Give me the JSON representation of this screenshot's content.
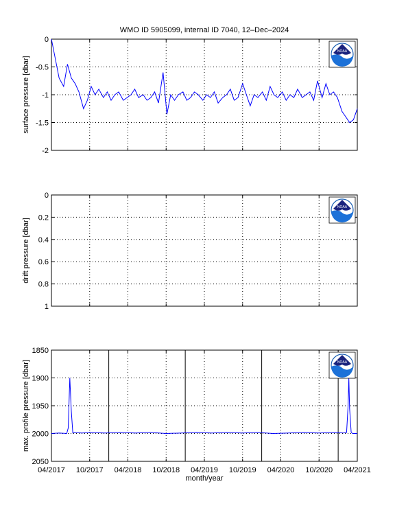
{
  "figure": {
    "title": "WMO ID 5905099, internal ID 7040, 12–Dec–2024",
    "xlabel": "month/year",
    "logo_text": "NOAA",
    "colors": {
      "series": "#0000ff",
      "axes": "#000000",
      "grid": "#000000"
    }
  },
  "chart_data": [
    {
      "type": "line",
      "ylabel": "surface pressure [dbar]",
      "ylim": [
        -2,
        0
      ],
      "yreversed": false,
      "yticks": [
        0,
        -0.5,
        -1,
        -1.5,
        -2
      ],
      "ytick_labels": [
        "0",
        "-0.5",
        "-1",
        "-1.5",
        "-2"
      ],
      "grid": true,
      "logo": "top-right",
      "series": [
        {
          "x": [
            0,
            0.05,
            0.1,
            0.16,
            0.21,
            0.26,
            0.31,
            0.36,
            0.42,
            0.47,
            0.52,
            0.57,
            0.62,
            0.68,
            0.73,
            0.78,
            0.83,
            0.88,
            0.94,
            0.99,
            1.04,
            1.09,
            1.14,
            1.2,
            1.25,
            1.3,
            1.35,
            1.4,
            1.46,
            1.51,
            1.56,
            1.61,
            1.66,
            1.72,
            1.77,
            1.82,
            1.87,
            1.92,
            1.98,
            2.03,
            2.08,
            2.13,
            2.18,
            2.24,
            2.29,
            2.34,
            2.39,
            2.44,
            2.5,
            2.55,
            2.6,
            2.65,
            2.7,
            2.76,
            2.81,
            2.86,
            2.91,
            2.96,
            3.02,
            3.07,
            3.12,
            3.17,
            3.22,
            3.28,
            3.33,
            3.38,
            3.43,
            3.48,
            3.54,
            3.59,
            3.64,
            3.69,
            3.74,
            3.8,
            3.85,
            3.9,
            3.95,
            4.0
          ],
          "y": [
            0,
            -0.35,
            -0.7,
            -0.85,
            -0.45,
            -0.7,
            -0.8,
            -0.95,
            -1.25,
            -1.1,
            -0.85,
            -1.0,
            -0.9,
            -1.05,
            -0.95,
            -1.1,
            -1.0,
            -0.95,
            -1.1,
            -1.05,
            -1.0,
            -0.9,
            -1.05,
            -1.0,
            -1.1,
            -1.05,
            -0.95,
            -1.15,
            -0.6,
            -1.35,
            -1.0,
            -1.1,
            -1.0,
            -0.95,
            -1.1,
            -1.05,
            -0.95,
            -1.0,
            -1.1,
            -1.0,
            -1.05,
            -0.95,
            -1.15,
            -1.05,
            -1.0,
            -0.9,
            -1.1,
            -1.05,
            -0.8,
            -1.0,
            -1.2,
            -1.0,
            -1.05,
            -0.95,
            -1.1,
            -0.85,
            -1.0,
            -1.05,
            -0.95,
            -1.1,
            -1.0,
            -1.05,
            -0.9,
            -1.05,
            -1.0,
            -0.95,
            -1.1,
            -0.75,
            -1.05,
            -0.8,
            -1.0,
            -0.95,
            -1.05,
            -1.3,
            -1.4,
            -1.5,
            -1.45,
            -1.25
          ]
        }
      ]
    },
    {
      "type": "line",
      "ylabel": "drift pressure [dbar]",
      "ylim": [
        0,
        1
      ],
      "yreversed": true,
      "yticks": [
        0,
        0.2,
        0.4,
        0.6,
        0.8,
        1
      ],
      "ytick_labels": [
        "0",
        "0.2",
        "0.4",
        "0.6",
        "0.8",
        "1"
      ],
      "grid": true,
      "logo": "top-right",
      "series": []
    },
    {
      "type": "line",
      "ylabel": "max. profile pressure [dbar]",
      "ylim": [
        1850,
        2050
      ],
      "yreversed": true,
      "yticks": [
        1850,
        1900,
        1950,
        2000,
        2050
      ],
      "ytick_labels": [
        "1850",
        "1900",
        "1950",
        "2000",
        "2050"
      ],
      "grid": true,
      "logo": "top-right",
      "vlines_x": [
        0.75,
        1.75,
        2.75,
        3.75
      ],
      "series": [
        {
          "x": [
            0,
            0.1,
            0.2,
            0.22,
            0.24,
            0.26,
            0.28,
            0.3,
            0.4,
            0.5,
            0.7,
            0.9,
            1.1,
            1.3,
            1.5,
            1.7,
            1.9,
            2.1,
            2.3,
            2.5,
            2.7,
            2.9,
            3.1,
            3.3,
            3.5,
            3.7,
            3.82,
            3.86,
            3.88,
            3.89,
            3.9,
            3.92,
            3.94,
            4.0
          ],
          "y": [
            2000,
            1999,
            2000,
            1990,
            1900,
            1960,
            1999,
            1998,
            1999,
            1998,
            1999,
            1998,
            1999,
            1998,
            2000,
            1999,
            1998,
            1999,
            1998,
            1999,
            1998,
            2000,
            1999,
            1998,
            1999,
            1998,
            1999,
            1998,
            1950,
            1900,
            1955,
            1998,
            2000,
            2000
          ]
        }
      ]
    }
  ],
  "x_axis": {
    "xlim": [
      0,
      4.0
    ],
    "ticks": [
      0,
      0.5,
      1.0,
      1.5,
      2.0,
      2.5,
      3.0,
      3.5,
      4.0
    ],
    "tick_labels": [
      "04/2017",
      "10/2017",
      "04/2018",
      "10/2018",
      "04/2019",
      "10/2019",
      "04/2020",
      "10/2020",
      "04/2021"
    ]
  }
}
